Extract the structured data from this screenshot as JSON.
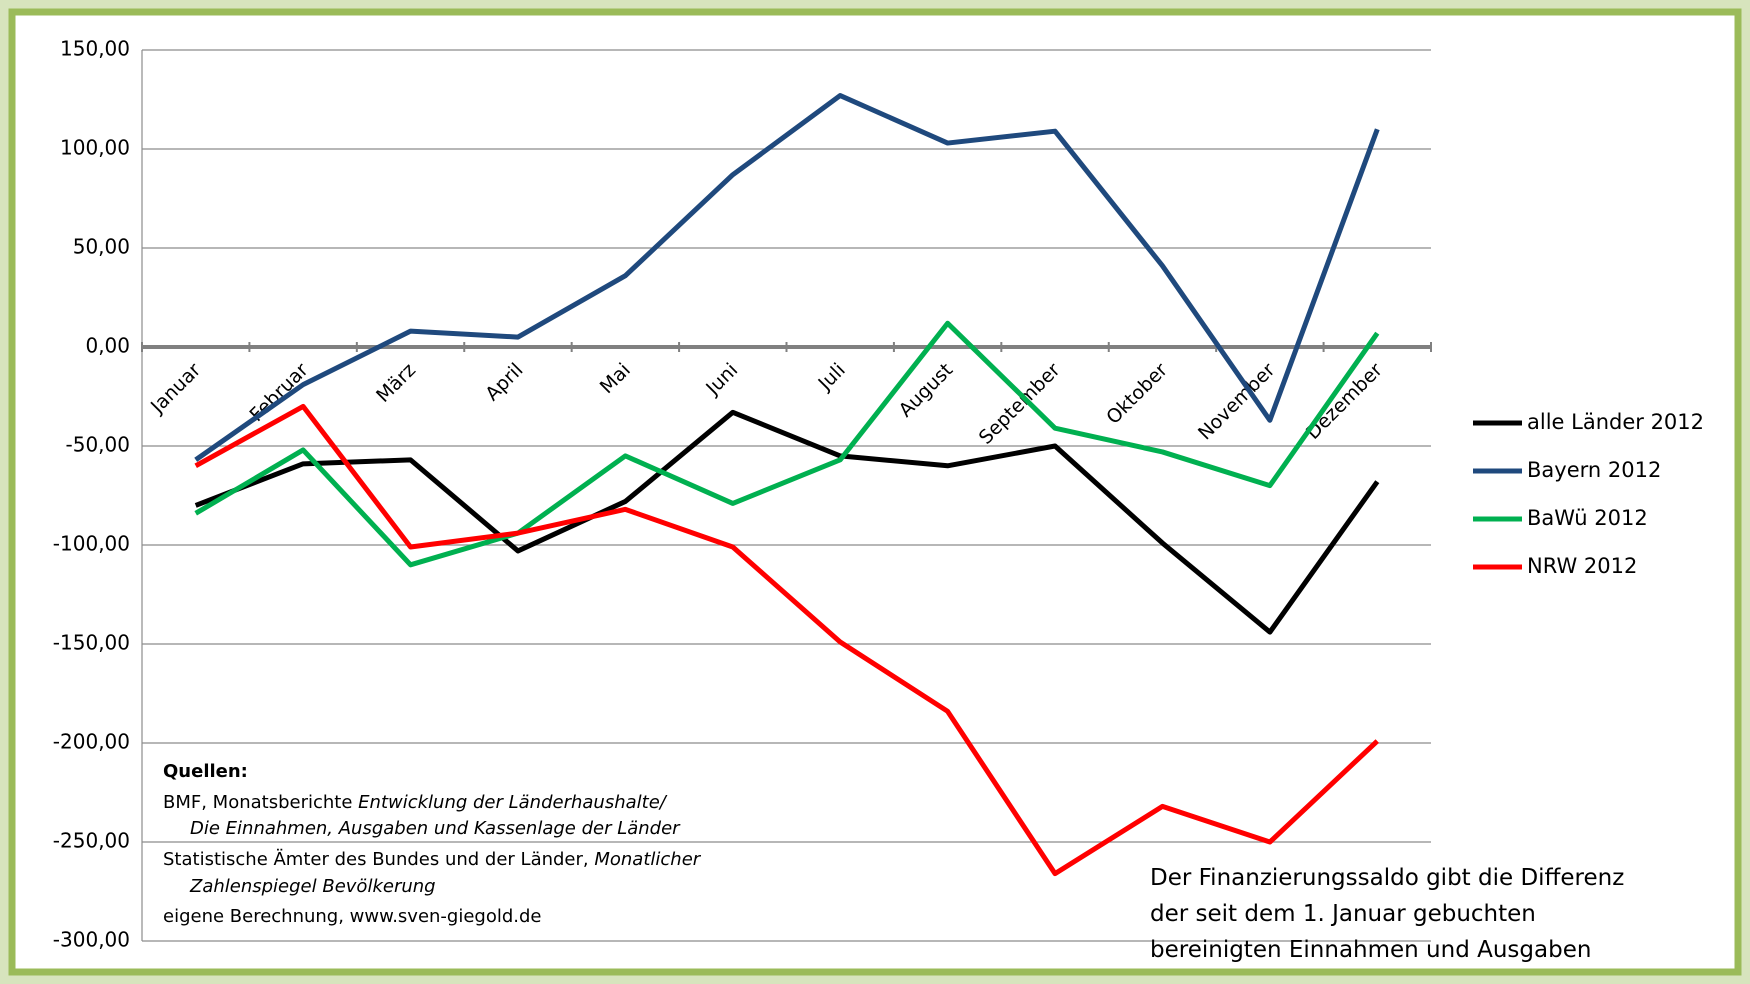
{
  "chart_data": {
    "type": "line",
    "categories": [
      "Januar",
      "Februar",
      "März",
      "April",
      "Mai",
      "Juni",
      "Juli",
      "August",
      "September",
      "Oktober",
      "November",
      "Dezember"
    ],
    "series": [
      {
        "name": "alle Länder 2012",
        "color": "#000000",
        "values": [
          -80,
          -59,
          -57,
          -103,
          -78,
          -33,
          -55,
          -60,
          -50,
          -99,
          -144,
          -68
        ]
      },
      {
        "name": "Bayern 2012",
        "color": "#1f497d",
        "values": [
          -57,
          -19,
          8,
          5,
          36,
          87,
          127,
          103,
          109,
          41,
          -37,
          110
        ]
      },
      {
        "name": "BaWü 2012",
        "color": "#00b050",
        "values": [
          -84,
          -52,
          -110,
          -94,
          -55,
          -79,
          -57,
          12,
          -41,
          -53,
          -70,
          7
        ]
      },
      {
        "name": "NRW 2012",
        "color": "#ff0000",
        "values": [
          -60,
          -30,
          -101,
          -94,
          -82,
          -101,
          -149,
          -184,
          -266,
          -232,
          -250,
          -199
        ]
      }
    ],
    "ylim": [
      -300,
      150
    ],
    "yticks": [
      {
        "value": 150,
        "label": "150,00"
      },
      {
        "value": 100,
        "label": "100,00"
      },
      {
        "value": 50,
        "label": "50,00"
      },
      {
        "value": 0,
        "label": "0,00"
      },
      {
        "value": -50,
        "label": "-50,00"
      },
      {
        "value": -100,
        "label": "-100,00"
      },
      {
        "value": -150,
        "label": "-150,00"
      },
      {
        "value": -200,
        "label": "-200,00"
      },
      {
        "value": -250,
        "label": "-250,00"
      },
      {
        "value": -300,
        "label": "-300,00"
      }
    ],
    "grid": true,
    "legend": "right",
    "sources": {
      "title": "Quellen:",
      "lines": [
        [
          "BMF,  Monatsberichte ",
          "Entwicklung der Länderhaushalte/"
        ],
        [
          "Die Einnahmen, Ausgaben und Kassenlage der Länder"
        ],
        [
          "Statistische Ämter des Bundes und der Länder, ",
          "Monatlicher"
        ],
        [
          "Zahlenspiegel Bevölkerung"
        ],
        [
          "eigene Berechnung, www.sven-giegold.de"
        ]
      ]
    },
    "annotation": [
      "Der Finanzierungssaldo gibt die Differenz",
      "der seit dem 1. Januar gebuchten",
      "bereinigten Einnahmen und Ausgaben"
    ]
  }
}
